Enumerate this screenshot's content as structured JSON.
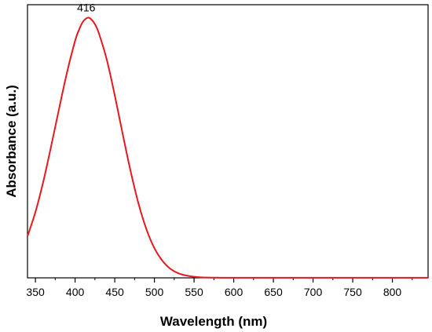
{
  "chart_data": {
    "type": "line",
    "xlabel": "Wavelength (nm)",
    "ylabel": "Absorbance (a.u.)",
    "xlim": [
      340,
      845
    ],
    "ylim": [
      0,
      1.05
    ],
    "xticks": [
      350,
      400,
      450,
      500,
      550,
      600,
      650,
      700,
      750,
      800
    ],
    "y_tick_labels_shown": false,
    "grid": false,
    "legend": "none",
    "series": [
      {
        "color": "#e8191e",
        "x": [
          340,
          350,
          360,
          370,
          380,
          390,
          400,
          405,
          410,
          416,
          420,
          425,
          430,
          440,
          450,
          460,
          470,
          480,
          490,
          500,
          510,
          520,
          530,
          540,
          550,
          560,
          570,
          580,
          600,
          650,
          700,
          750,
          800,
          845
        ],
        "y": [
          0.16,
          0.253,
          0.371,
          0.509,
          0.653,
          0.792,
          0.911,
          0.954,
          0.985,
          1.0,
          0.995,
          0.975,
          0.94,
          0.838,
          0.702,
          0.553,
          0.41,
          0.285,
          0.186,
          0.114,
          0.066,
          0.035,
          0.018,
          0.009,
          0.004,
          0.0018,
          0.001,
          0.0006,
          0.0004,
          0.0003,
          0.0002,
          0.0002,
          0.0002,
          0.0002
        ]
      }
    ],
    "annotations": [
      {
        "text": "416",
        "x": 416,
        "y": 1.0
      }
    ]
  }
}
